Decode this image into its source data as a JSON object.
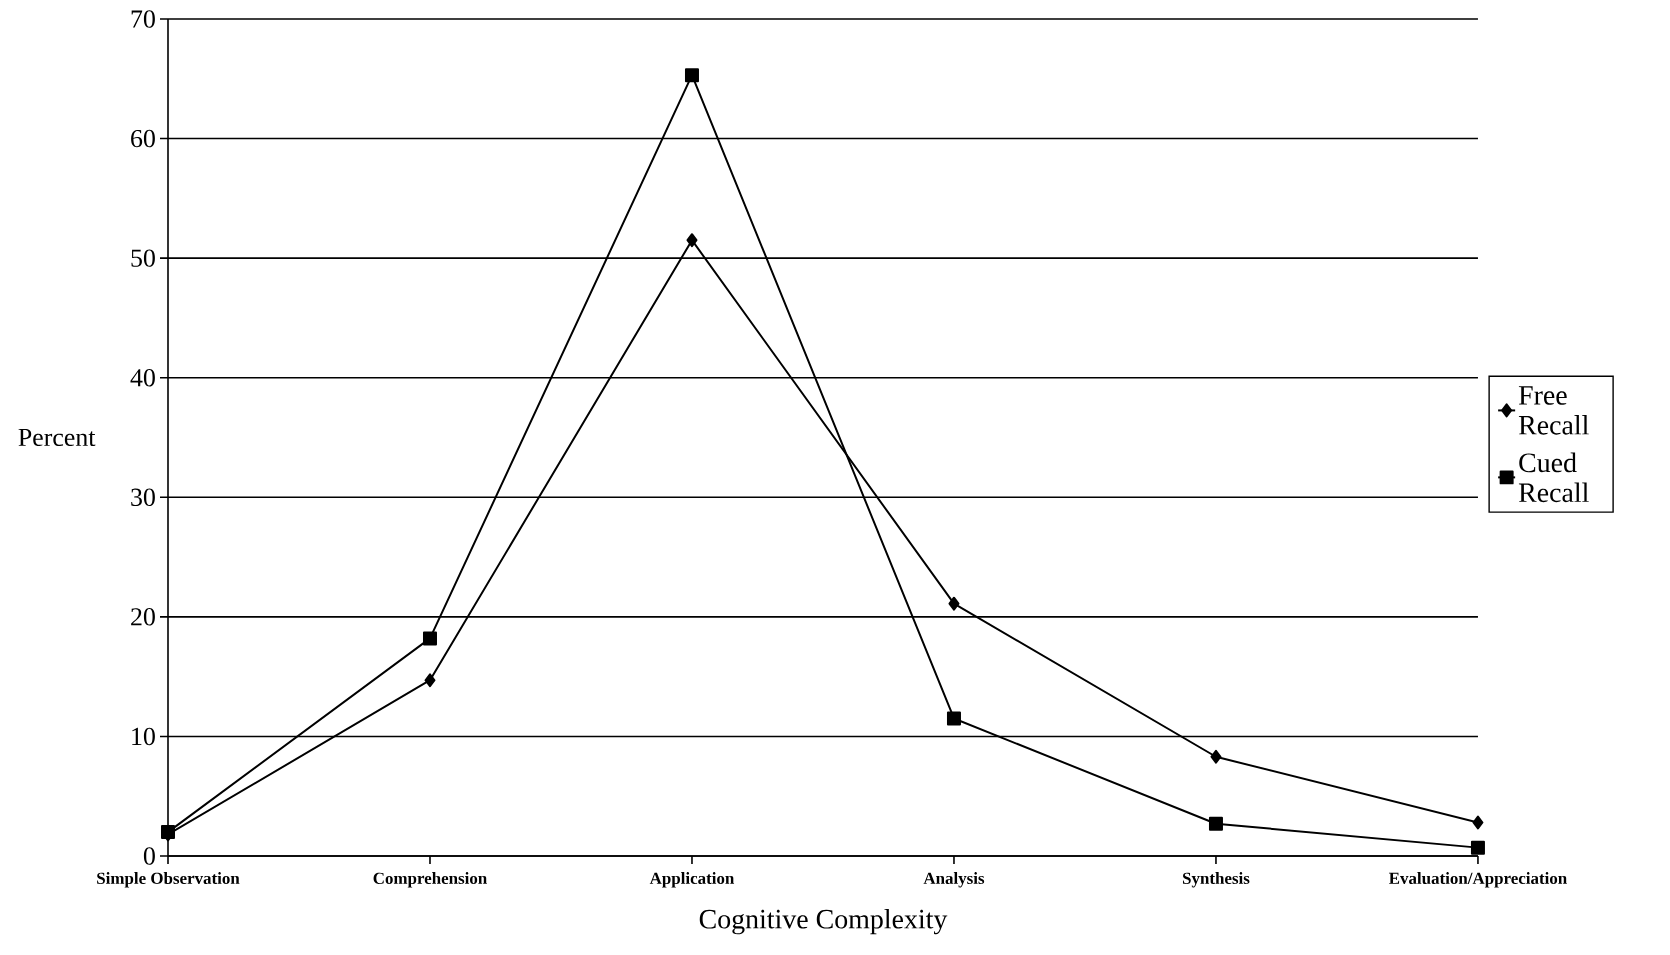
{
  "chart_data": {
    "type": "line",
    "xlabel": "Cognitive Complexity",
    "ylabel": "Percent",
    "categories": [
      "Simple Observation",
      "Comprehension",
      "Application",
      "Analysis",
      "Synthesis",
      "Evaluation/Appreciation"
    ],
    "series": [
      {
        "name": "Free Recall",
        "color": "#000000",
        "marker": "diamond",
        "values": [
          1.8,
          14.7,
          51.5,
          21.1,
          8.3,
          2.8
        ]
      },
      {
        "name": "Cued Recall",
        "color": "#000000",
        "marker": "square",
        "values": [
          2.0,
          18.2,
          65.3,
          11.5,
          2.7,
          0.7
        ]
      }
    ],
    "ylim": [
      0,
      70
    ],
    "yticks": [
      0,
      10,
      20,
      30,
      40,
      50,
      60,
      70
    ],
    "grid": "y",
    "legend": "right"
  }
}
